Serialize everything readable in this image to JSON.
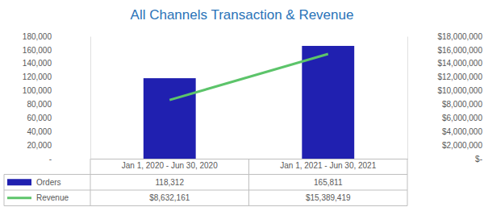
{
  "chart_data": {
    "type": "bar",
    "title": "All Channels Transaction & Revenue",
    "categories": [
      "Jan 1, 2020 - Jun 30, 2020",
      "Jan 1, 2021 - Jun 30, 2021"
    ],
    "series": [
      {
        "name": "Orders",
        "type": "bar",
        "color": "#2020b0",
        "values": [
          118312,
          165811
        ],
        "value_labels": [
          "118,312",
          "165,811"
        ]
      },
      {
        "name": "Revenue",
        "type": "line",
        "color": "#5cc46a",
        "axis": "y2",
        "values": [
          8632161,
          15389419
        ],
        "value_labels": [
          "$8,632,161",
          "$15,389,419"
        ]
      }
    ],
    "ylim": [
      0,
      180000
    ],
    "yticks": [
      {
        "value": 0,
        "label": "-"
      },
      {
        "value": 20000,
        "label": "20,000"
      },
      {
        "value": 40000,
        "label": "40,000"
      },
      {
        "value": 60000,
        "label": "60,000"
      },
      {
        "value": 80000,
        "label": "80,000"
      },
      {
        "value": 100000,
        "label": "100,000"
      },
      {
        "value": 120000,
        "label": "120,000"
      },
      {
        "value": 140000,
        "label": "140,000"
      },
      {
        "value": 160000,
        "label": "160,000"
      },
      {
        "value": 180000,
        "label": "180,000"
      }
    ],
    "y2lim": [
      0,
      18000000
    ],
    "y2ticks": [
      {
        "value": 0,
        "label": "$-"
      },
      {
        "value": 2000000,
        "label": "$2,000,000"
      },
      {
        "value": 4000000,
        "label": "$4,000,000"
      },
      {
        "value": 6000000,
        "label": "$6,000,000"
      },
      {
        "value": 8000000,
        "label": "$8,000,000"
      },
      {
        "value": 10000000,
        "label": "$10,000,000"
      },
      {
        "value": 12000000,
        "label": "$12,000,000"
      },
      {
        "value": 14000000,
        "label": "$14,000,000"
      },
      {
        "value": 16000000,
        "label": "$16,000,000"
      },
      {
        "value": 18000000,
        "label": "$18,000,000"
      }
    ],
    "grid": false,
    "data_labels": true
  }
}
